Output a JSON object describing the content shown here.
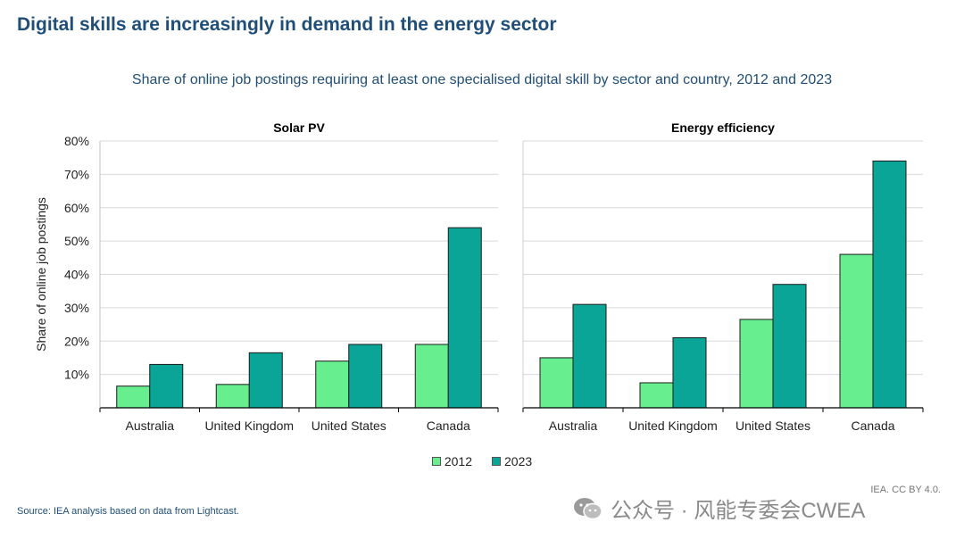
{
  "headline": "Digital skills are increasingly in demand in the energy sector",
  "subtitle": "Share of online job postings requiring at least one specialised digital skill by sector and country, 2012 and 2023",
  "source": "Source: IEA analysis based on data from Lightcast.",
  "license": "IEA. CC BY 4.0.",
  "watermark": "公众号 · 风能专委会CWEA",
  "colors": {
    "s2012": "#66ee8f",
    "s2023": "#0aa596",
    "grid": "#d9d9d9",
    "axis": "#000000"
  },
  "chart_data": [
    {
      "type": "bar",
      "title": "Solar PV",
      "ylabel": "Share of online job postings",
      "ylim": [
        0,
        80
      ],
      "yticks": [
        "",
        "10%",
        "20%",
        "30%",
        "40%",
        "50%",
        "60%",
        "70%",
        "80%"
      ],
      "categories": [
        "Australia",
        "United Kingdom",
        "United States",
        "Canada"
      ],
      "series": [
        {
          "name": "2012",
          "values": [
            6.5,
            7,
            14,
            19
          ]
        },
        {
          "name": "2023",
          "values": [
            13,
            16.5,
            19,
            54
          ]
        }
      ],
      "grid": true,
      "legend": "bottom-center"
    },
    {
      "type": "bar",
      "title": "Energy efficiency",
      "ylabel": "",
      "ylim": [
        0,
        80
      ],
      "categories": [
        "Australia",
        "United Kingdom",
        "United States",
        "Canada"
      ],
      "series": [
        {
          "name": "2012",
          "values": [
            15,
            7.5,
            26.5,
            46
          ]
        },
        {
          "name": "2023",
          "values": [
            31,
            21,
            37,
            74
          ]
        }
      ],
      "grid": true,
      "legend": "bottom-center"
    }
  ]
}
